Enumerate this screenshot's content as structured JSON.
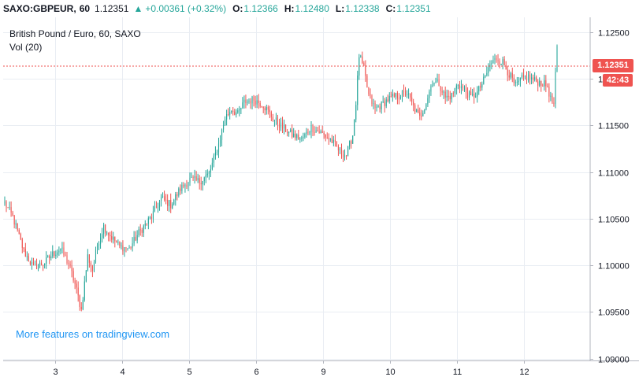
{
  "header": {
    "symbol": "SAXO:GBPEUR,",
    "interval": "60",
    "last": "1.12351",
    "arrow": "▲",
    "change": "+0.00361 (+0.32%)",
    "o_label": "O:",
    "o_value": "1.12366",
    "h_label": "H:",
    "h_value": "1.12480",
    "l_label": "L:",
    "l_value": "1.12338",
    "c_label": "C:",
    "c_value": "1.12351"
  },
  "legend": {
    "title": "British Pound / Euro, 60, SAXO",
    "volume": "Vol (20)"
  },
  "price_label": "1.12351",
  "countdown_label": "42:43",
  "watermark": "More features on tradingview.com",
  "colors": {
    "up": "#26a69a",
    "down": "#ef5350",
    "grid": "#e9edf3",
    "axis_text": "#131722",
    "watermark": "#2196f3"
  },
  "chart_data": {
    "type": "candlestick",
    "title": "British Pound / Euro, 60, SAXO",
    "xlabel": "",
    "ylabel": "",
    "ylim": [
      1.0898,
      1.1266
    ],
    "grid": true,
    "y_ticks": [
      "1.09000",
      "1.09500",
      "1.10000",
      "1.10500",
      "1.11000",
      "1.11500",
      "1.12000",
      "1.12500"
    ],
    "x_ticks": [
      "3",
      "4",
      "5",
      "6",
      "9",
      "10",
      "11",
      "12"
    ],
    "last_price": 1.12351,
    "anchors": [
      [
        0,
        1.1067
      ],
      [
        5,
        1.1052
      ],
      [
        12,
        1.1015
      ],
      [
        18,
        1.0998
      ],
      [
        25,
        1.1003
      ],
      [
        30,
        1.1012
      ],
      [
        35,
        1.1018
      ],
      [
        40,
        1.1002
      ],
      [
        44,
        1.098
      ],
      [
        48,
        1.0952
      ],
      [
        52,
        1.101
      ],
      [
        55,
        1.0995
      ],
      [
        58,
        1.1022
      ],
      [
        62,
        1.1042
      ],
      [
        66,
        1.1032
      ],
      [
        72,
        1.102
      ],
      [
        78,
        1.1018
      ],
      [
        84,
        1.1035
      ],
      [
        92,
        1.1052
      ],
      [
        98,
        1.1072
      ],
      [
        104,
        1.1065
      ],
      [
        110,
        1.1082
      ],
      [
        116,
        1.1092
      ],
      [
        122,
        1.109
      ],
      [
        128,
        1.1098
      ],
      [
        134,
        1.113
      ],
      [
        138,
        1.1158
      ],
      [
        142,
        1.1168
      ],
      [
        146,
        1.1162
      ],
      [
        150,
        1.1175
      ],
      [
        156,
        1.1178
      ],
      [
        162,
        1.1172
      ],
      [
        168,
        1.1158
      ],
      [
        174,
        1.1148
      ],
      [
        180,
        1.114
      ],
      [
        186,
        1.1135
      ],
      [
        192,
        1.1148
      ],
      [
        198,
        1.1142
      ],
      [
        204,
        1.1135
      ],
      [
        210,
        1.1122
      ],
      [
        214,
        1.1118
      ],
      [
        218,
        1.114
      ],
      [
        220,
        1.1175
      ],
      [
        222,
        1.1225
      ],
      [
        225,
        1.121
      ],
      [
        228,
        1.1182
      ],
      [
        232,
        1.1168
      ],
      [
        236,
        1.1172
      ],
      [
        240,
        1.1178
      ],
      [
        246,
        1.1182
      ],
      [
        252,
        1.1185
      ],
      [
        256,
        1.117
      ],
      [
        260,
        1.1158
      ],
      [
        264,
        1.1175
      ],
      [
        268,
        1.1198
      ],
      [
        272,
        1.1195
      ],
      [
        276,
        1.118
      ],
      [
        280,
        1.1182
      ],
      [
        284,
        1.1195
      ],
      [
        288,
        1.1188
      ],
      [
        292,
        1.118
      ],
      [
        296,
        1.1185
      ],
      [
        300,
        1.1198
      ],
      [
        304,
        1.1215
      ],
      [
        308,
        1.1222
      ],
      [
        312,
        1.1218
      ],
      [
        316,
        1.1205
      ],
      [
        320,
        1.1192
      ],
      [
        324,
        1.12
      ],
      [
        328,
        1.1202
      ],
      [
        332,
        1.1198
      ],
      [
        336,
        1.1196
      ],
      [
        340,
        1.1192
      ],
      [
        342,
        1.1178
      ],
      [
        344,
        1.1172
      ],
      [
        346,
        1.1235
      ]
    ]
  }
}
